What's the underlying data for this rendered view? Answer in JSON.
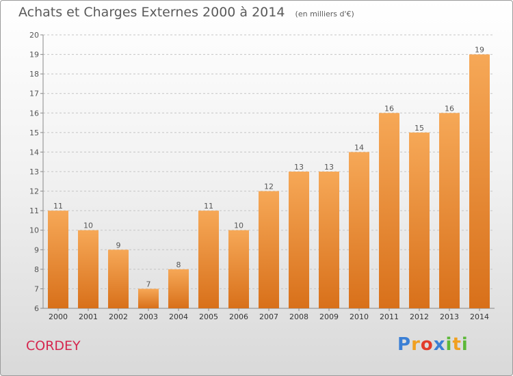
{
  "header": {
    "title": "Achats et Charges Externes 2000 à 2014",
    "subtitle": "(en milliers d'€)"
  },
  "commune": "CORDEY",
  "logo": {
    "letters": [
      {
        "ch": "P",
        "color": "#3a7fd5"
      },
      {
        "ch": "r",
        "color": "#f0a020"
      },
      {
        "ch": "o",
        "color": "#e23c2c"
      },
      {
        "ch": "x",
        "color": "#3a7fd5"
      },
      {
        "ch": "i",
        "color": "#5cb838"
      },
      {
        "ch": "t",
        "color": "#f0a020"
      },
      {
        "ch": "i",
        "color": "#5cb838"
      }
    ]
  },
  "chart_data": {
    "type": "bar",
    "categories": [
      "2000",
      "2001",
      "2002",
      "2003",
      "2004",
      "2005",
      "2006",
      "2007",
      "2008",
      "2009",
      "2010",
      "2011",
      "2012",
      "2013",
      "2014"
    ],
    "values": [
      11,
      10,
      9,
      7,
      8,
      11,
      10,
      12,
      13,
      13,
      14,
      16,
      15,
      16,
      19
    ],
    "ylim": [
      6,
      20
    ],
    "yticks": [
      6,
      7,
      8,
      9,
      10,
      11,
      12,
      13,
      14,
      15,
      16,
      17,
      18,
      19,
      20
    ],
    "grid": true,
    "bar_color_top": "#f6a857",
    "bar_color_bottom": "#d8701a"
  }
}
